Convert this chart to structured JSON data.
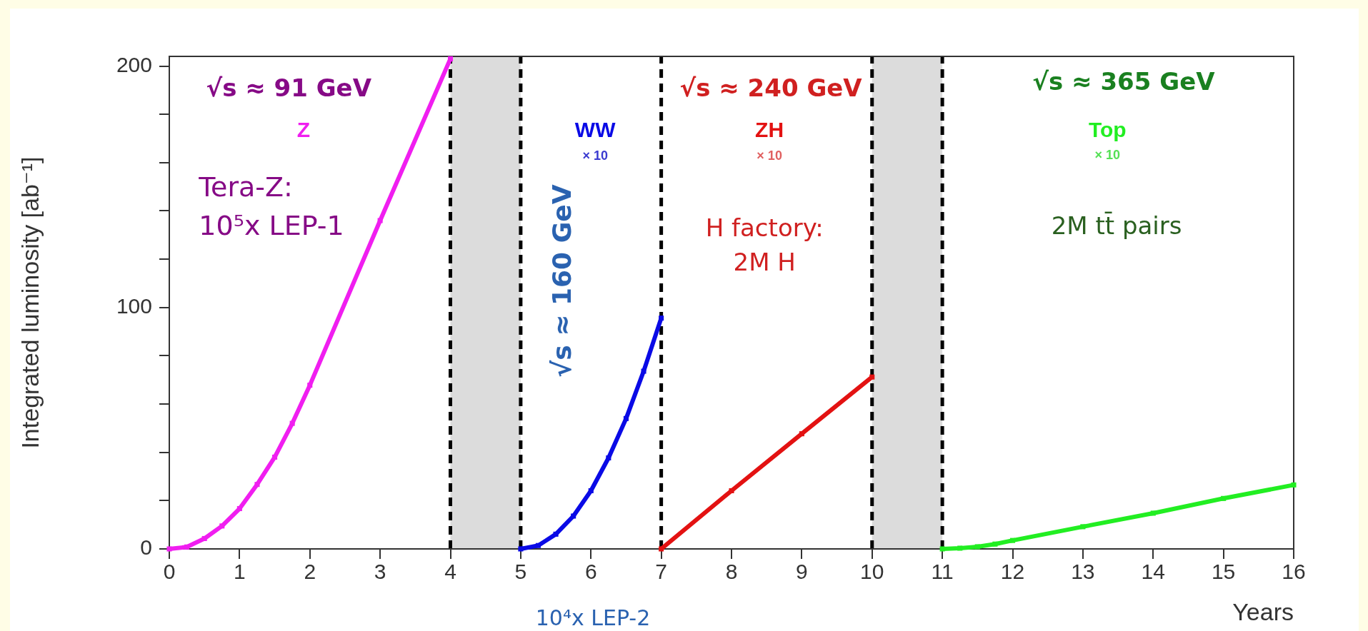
{
  "chart_data": {
    "type": "line",
    "xlabel": "Years",
    "ylabel": "Integrated luminosity [ab⁻¹]",
    "xlim": [
      0,
      16
    ],
    "ylim": [
      0,
      204
    ],
    "xticks": [
      0,
      1,
      2,
      3,
      4,
      5,
      6,
      7,
      8,
      9,
      10,
      11,
      12,
      13,
      14,
      15,
      16
    ],
    "yticks": [
      0,
      {
        "value": 20,
        "label": null
      },
      {
        "value": 40,
        "label": null
      },
      {
        "value": 60,
        "label": null
      },
      {
        "value": 80,
        "label": null
      },
      100,
      {
        "value": 120,
        "label": null
      },
      {
        "value": 140,
        "label": null
      },
      {
        "value": 160,
        "label": null
      },
      {
        "value": 180,
        "label": null
      },
      200
    ],
    "grid": false,
    "legend": false,
    "marker": "square",
    "line_style": "solid",
    "series": [
      {
        "name": "Z",
        "color": "#f01ef0",
        "x": [
          0,
          0.25,
          0.5,
          0.75,
          1,
          1.25,
          1.5,
          1.75,
          2,
          3,
          4
        ],
        "values": [
          0,
          0.8,
          4.3,
          9.5,
          16.7,
          26.7,
          38,
          52,
          67.8,
          136,
          203
        ]
      },
      {
        "name": "WW",
        "color": "#0a0ae6",
        "x": [
          5,
          5.25,
          5.5,
          5.75,
          6,
          6.25,
          6.5,
          6.75,
          7
        ],
        "values": [
          0,
          1.4,
          6.1,
          13.6,
          24.1,
          37.7,
          54,
          73.6,
          95.6
        ]
      },
      {
        "name": "ZH",
        "color": "#e31212",
        "x": [
          7,
          8,
          9,
          10
        ],
        "values": [
          0,
          24.1,
          47.7,
          71.2
        ]
      },
      {
        "name": "Top",
        "color": "#22ee22",
        "x": [
          11,
          11.25,
          11.5,
          11.75,
          12,
          13,
          14,
          15,
          16
        ],
        "values": [
          0,
          0.3,
          0.9,
          2,
          3.5,
          9.2,
          14.8,
          20.9,
          26.5
        ]
      }
    ],
    "ref_lines": [
      {
        "axis": "x",
        "value": 4,
        "color": "#000000",
        "line_style": "dashed"
      },
      {
        "axis": "x",
        "value": 5,
        "color": "#000000",
        "line_style": "dashed"
      },
      {
        "axis": "x",
        "value": 7,
        "color": "#000000",
        "line_style": "dashed"
      },
      {
        "axis": "x",
        "value": 10,
        "color": "#000000",
        "line_style": "dashed"
      },
      {
        "axis": "x",
        "value": 11,
        "color": "#000000",
        "line_style": "dashed"
      }
    ],
    "bands": [
      {
        "axis": "x",
        "from": 4,
        "to": 5,
        "color": "#dcdcdc"
      },
      {
        "axis": "x",
        "from": 10,
        "to": 11,
        "color": "#dcdcdc"
      }
    ],
    "annotations": [
      "√s ≈ 91 GeV",
      "Tera-Z:",
      "10⁵x LEP-1",
      "× 10",
      "√s ≈ 160 GeV",
      "10⁴x LEP-2",
      "√s ≈ 240 GeV",
      "× 10",
      "H factory:",
      "2M H",
      "√s ≈ 365 GeV",
      "× 10",
      "2M tt̄ pairs"
    ]
  }
}
